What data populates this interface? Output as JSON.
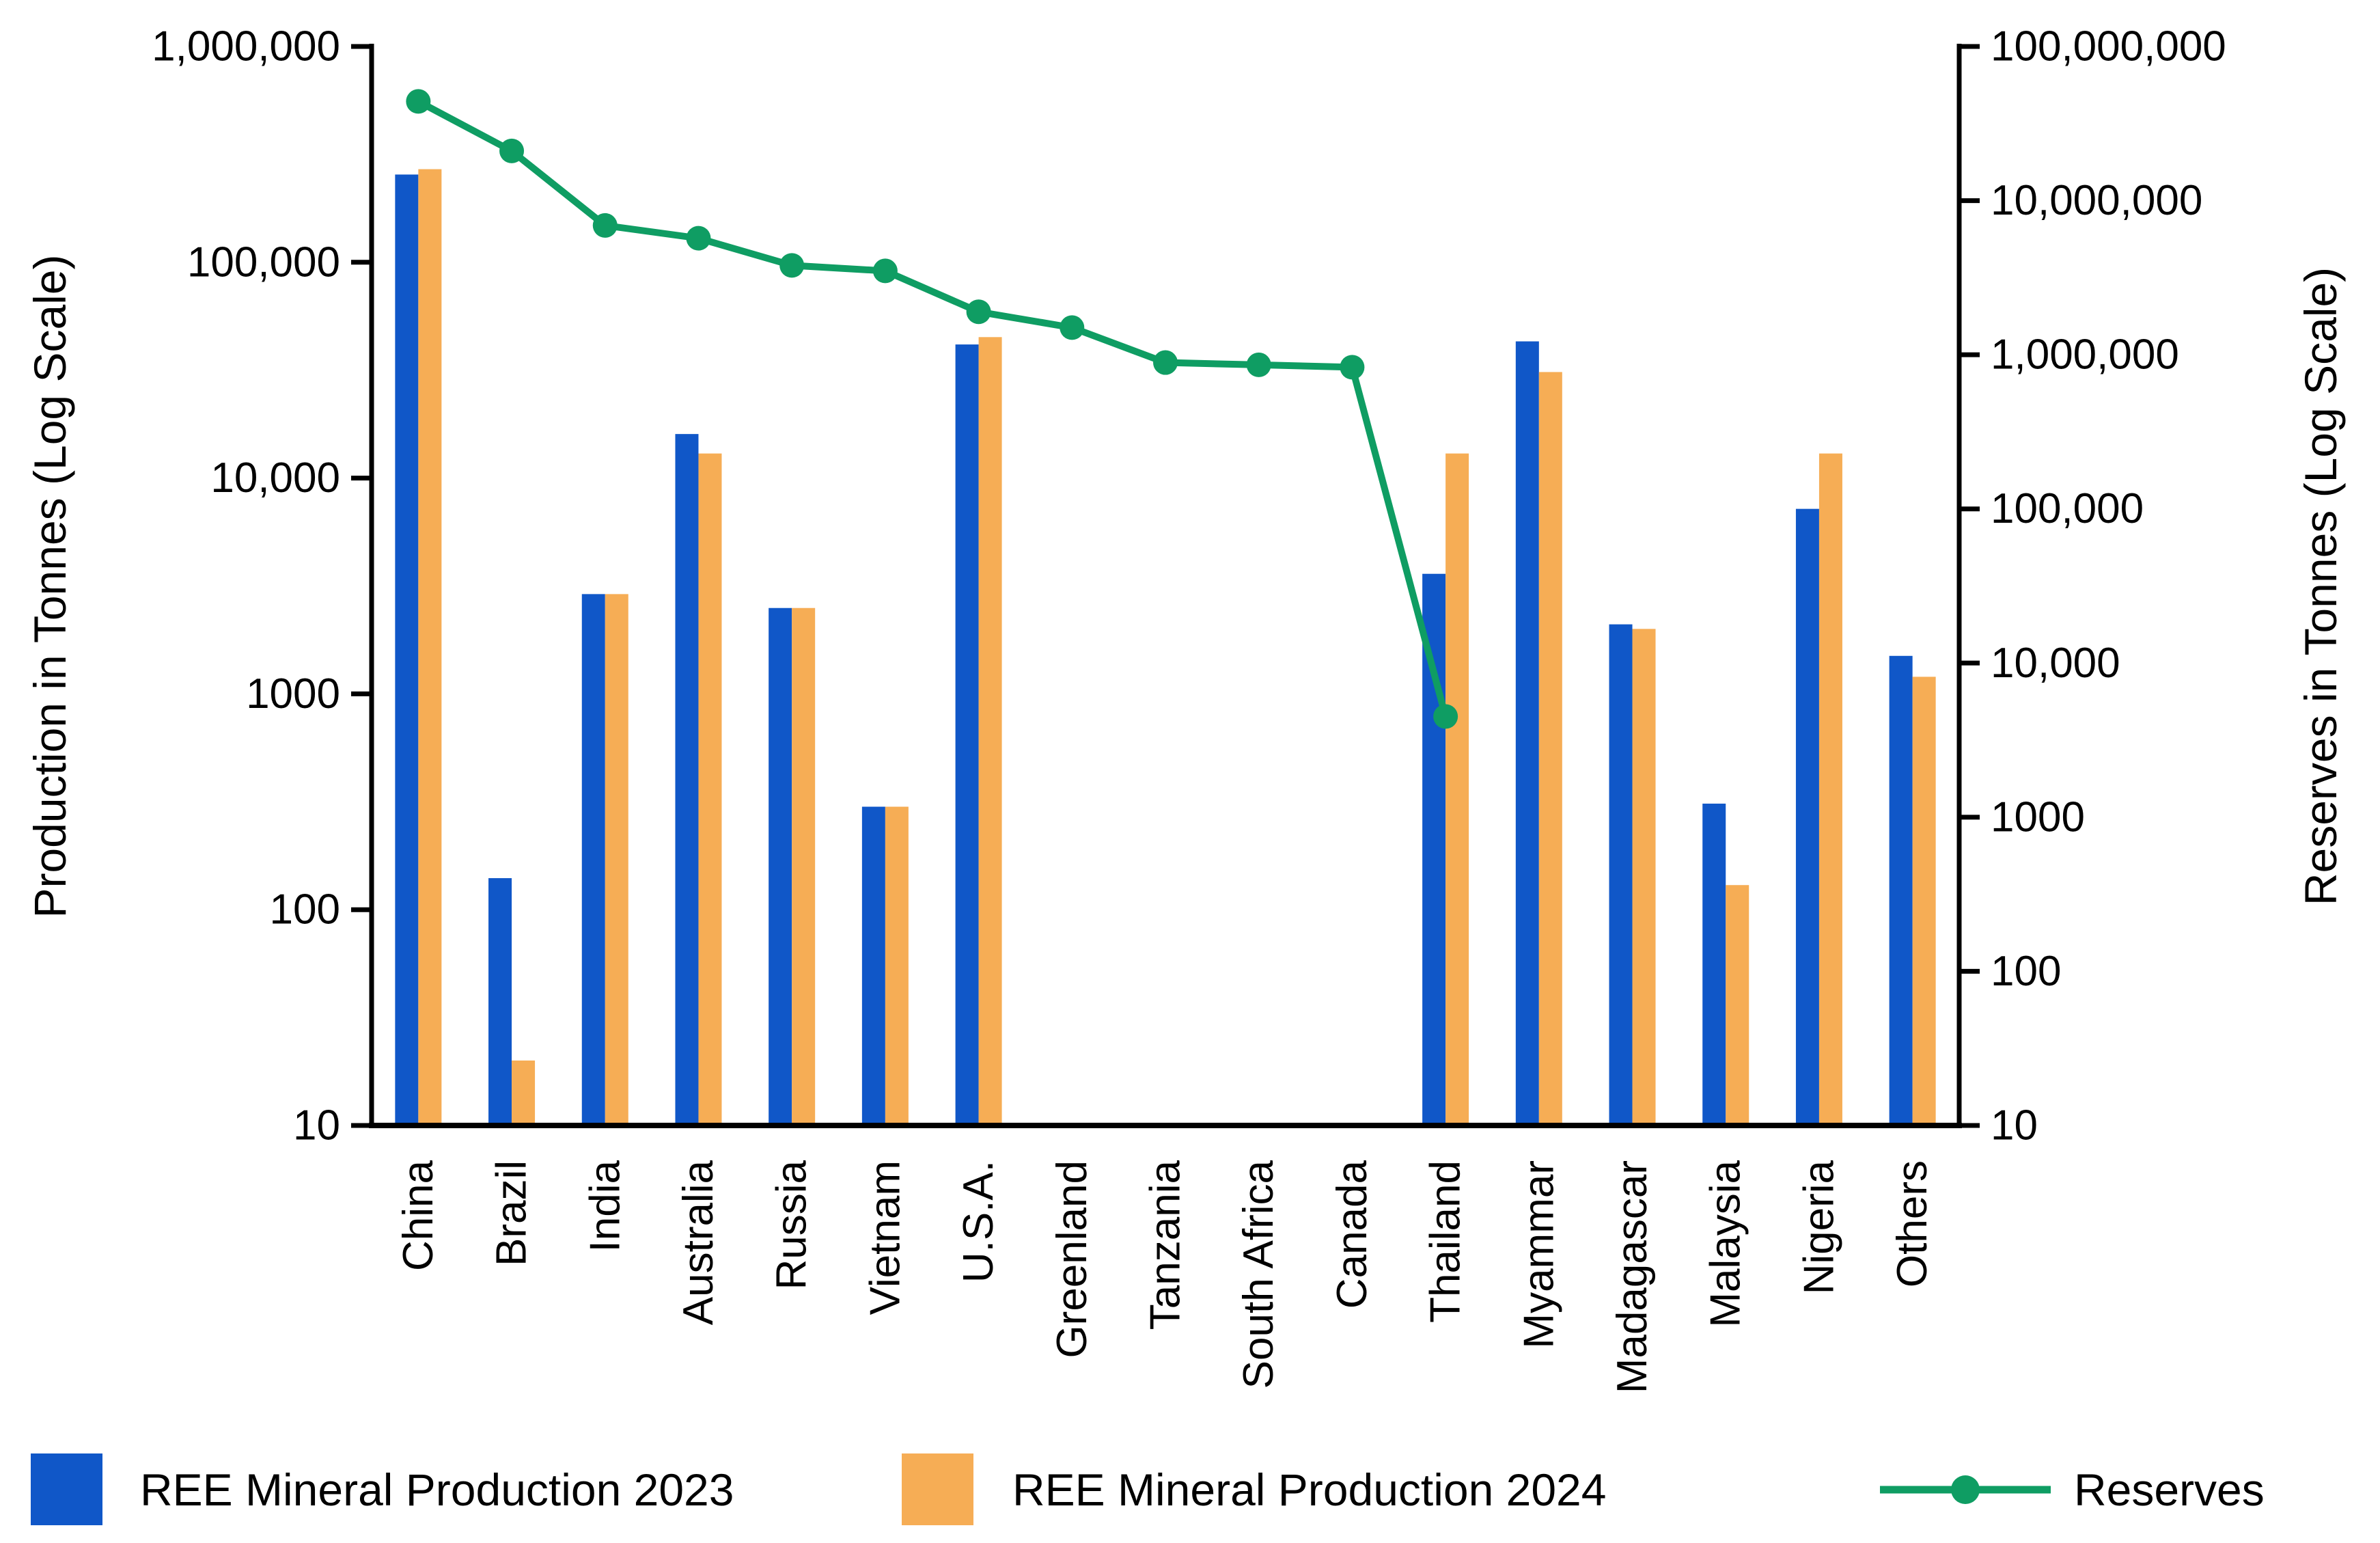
{
  "legend": {
    "items": [
      {
        "label": "REE Mineral Production 2023",
        "color": "#1057C8",
        "marker": "square"
      },
      {
        "label": "REE Mineral Production 2024",
        "color": "#F6AD55",
        "marker": "square"
      },
      {
        "label": "Reserves",
        "color": "#0F9D63",
        "marker": "line-dot"
      }
    ]
  },
  "chart_data": {
    "type": "bar",
    "subtype": "grouped-bars-with-line-dual-log-axes",
    "categories": [
      "China",
      "Brazil",
      "India",
      "Australia",
      "Russia",
      "Vietnam",
      "U.S.A.",
      "Greenland",
      "Tanzania",
      "South Africa",
      "Canada",
      "Thailand",
      "Myammar",
      "Madagascar",
      "Malaysia",
      "Nigeria",
      "Others"
    ],
    "series": [
      {
        "name": "REE Mineral Production 2023",
        "type": "bar",
        "axis": "left",
        "color": "#1057C8",
        "values": [
          255000,
          140,
          2900,
          16000,
          2500,
          300,
          41600,
          null,
          null,
          null,
          null,
          3600,
          43000,
          2100,
          310,
          7200,
          1500
        ]
      },
      {
        "name": "REE Mineral Production 2024",
        "type": "bar",
        "axis": "left",
        "color": "#F6AD55",
        "values": [
          270000,
          20,
          2900,
          13000,
          2500,
          300,
          45000,
          null,
          null,
          null,
          null,
          13000,
          31000,
          2000,
          130,
          13000,
          1200
        ]
      },
      {
        "name": "Reserves",
        "type": "line",
        "axis": "right",
        "color": "#0F9D63",
        "values": [
          44000000,
          21000000,
          6900000,
          5700000,
          3800000,
          3500000,
          1900000,
          1500000,
          890000,
          860000,
          830000,
          4500,
          null,
          null,
          null,
          null,
          null
        ]
      }
    ],
    "left_axis": {
      "label": "Production in Tonnes (Log Scale)",
      "scale": "log",
      "min": 10,
      "max": 1000000,
      "tick_values": [
        1000000,
        100000,
        10000,
        1000,
        100,
        10
      ],
      "tick_labels": [
        "1,000,000",
        "100,000",
        "10,000",
        "1000",
        "100",
        "10"
      ]
    },
    "right_axis": {
      "label": "Reserves in Tonnes (Log Scale)",
      "scale": "log",
      "min": 10,
      "max": 100000000,
      "tick_values": [
        100000000,
        10000000,
        1000000,
        100000,
        10000,
        1000,
        100,
        10
      ],
      "tick_labels": [
        "100,000,000",
        "10,000,000",
        "1,000,000",
        "100,000",
        "10,000",
        "1000",
        "100",
        "10"
      ]
    },
    "grid": false,
    "legend_position": "bottom"
  }
}
